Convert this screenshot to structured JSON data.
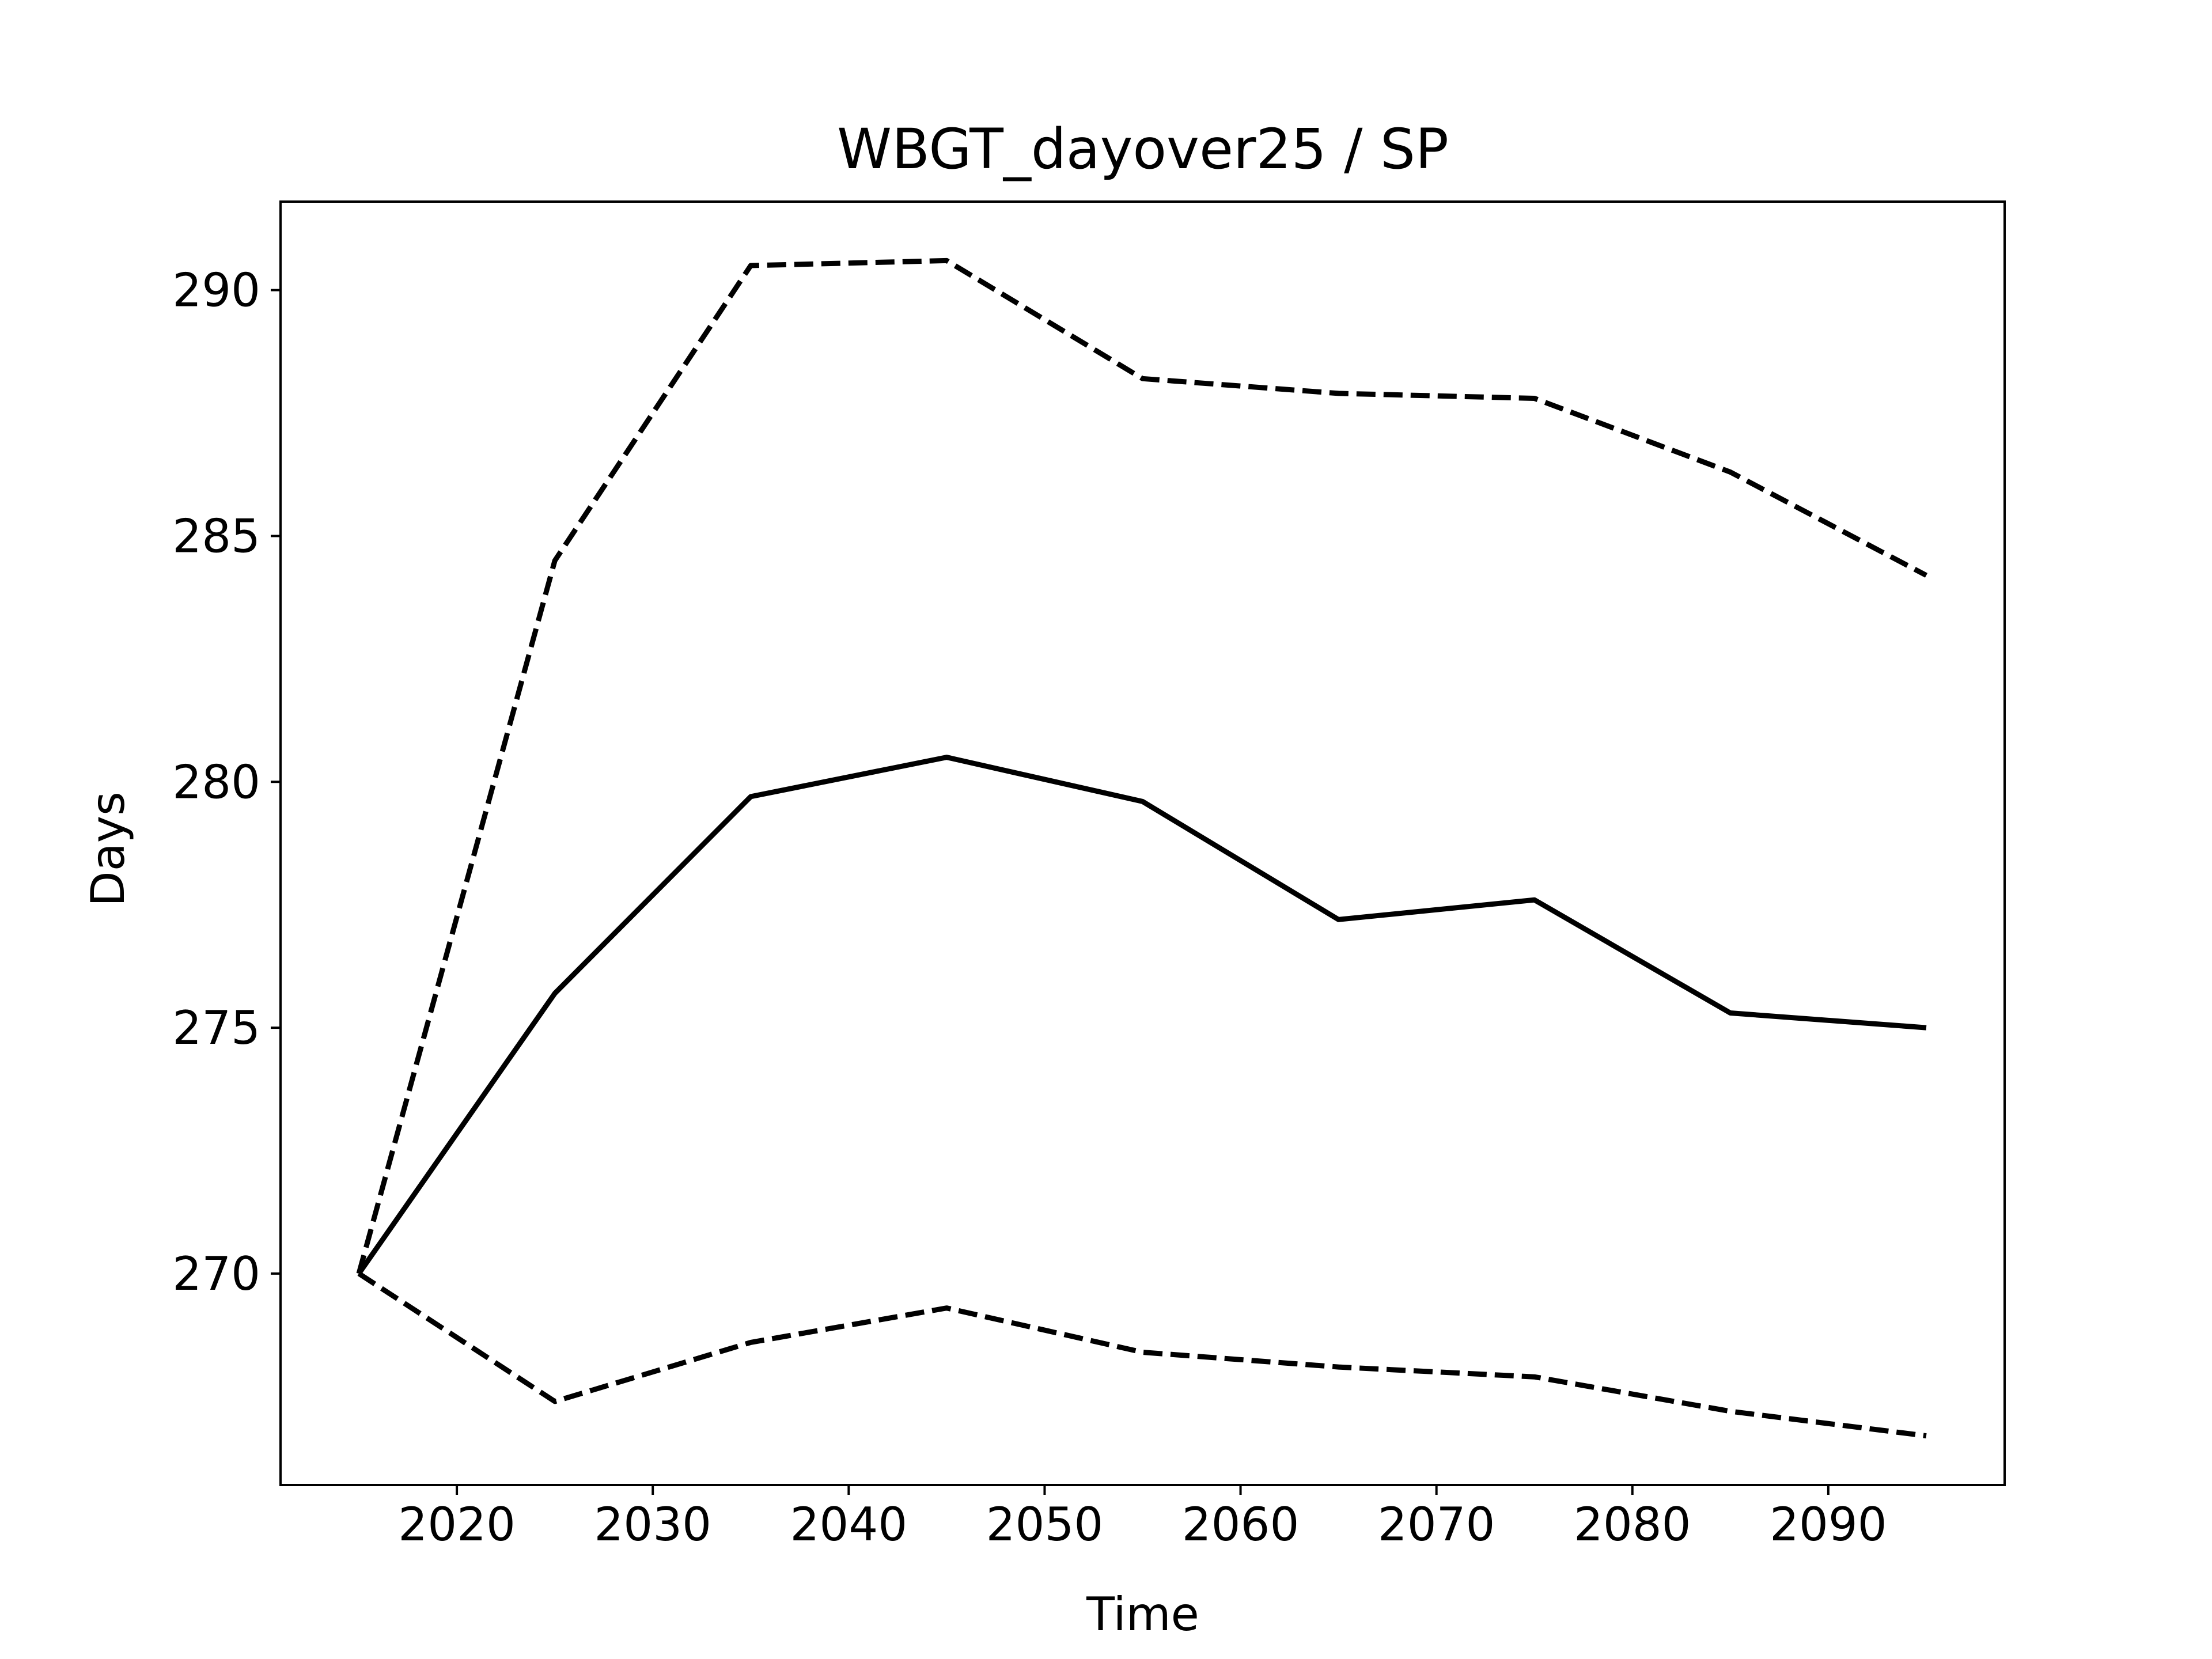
{
  "chart_data": {
    "type": "line",
    "title": "WBGT_dayover25 / SP",
    "xlabel": "Time",
    "ylabel": "Days",
    "x": [
      2015,
      2025,
      2035,
      2045,
      2055,
      2065,
      2075,
      2085,
      2095
    ],
    "series": [
      {
        "style": "solid",
        "values": [
          270.0,
          275.7,
          279.7,
          280.5,
          279.6,
          277.2,
          277.6,
          275.3,
          275.0
        ]
      },
      {
        "style": "dashed",
        "values": [
          270.0,
          284.5,
          290.5,
          290.6,
          288.2,
          287.9,
          287.8,
          286.3,
          284.2
        ]
      },
      {
        "style": "dashed",
        "values": [
          270.0,
          267.4,
          268.6,
          269.3,
          268.4,
          268.1,
          267.9,
          267.2,
          266.7
        ]
      }
    ],
    "xlim": [
      2011,
      2099
    ],
    "ylim": [
      265.7,
      291.8
    ],
    "xticks": [
      2020,
      2030,
      2040,
      2050,
      2060,
      2070,
      2080,
      2090
    ],
    "yticks": [
      270,
      275,
      280,
      285,
      290
    ],
    "grid": false,
    "legend": "none",
    "line_color": "#000000"
  }
}
